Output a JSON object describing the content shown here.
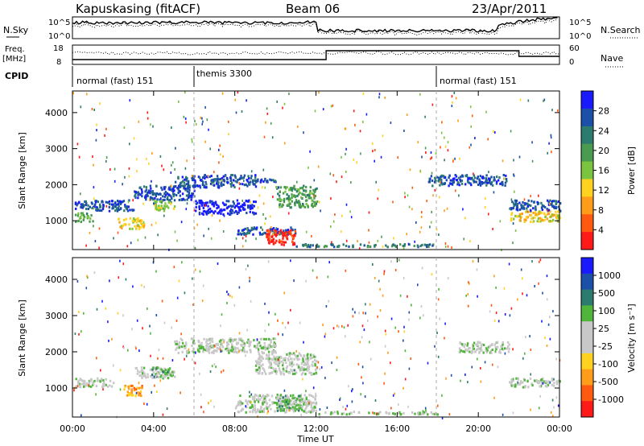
{
  "header": {
    "station": "Kapuskasing (fitACF)",
    "beam": "Beam 06",
    "date": "23/Apr/2011"
  },
  "top_panels": {
    "nsky_label": "N.Sky",
    "nsky_ticks": [
      "10^5",
      "10^0"
    ],
    "nsearch_label": "N.Search",
    "nsearch_ticks": [
      "10^5",
      "10^0"
    ],
    "freq_label_1": "Freq.",
    "freq_label_2": "[MHz]",
    "freq_ticks": [
      "18",
      "8"
    ],
    "nave_label": "Nave",
    "nave_ticks": [
      "60",
      "0"
    ],
    "cpid_label": "CPID",
    "cpid_segments": [
      {
        "label": "normal (fast) 151",
        "start": 0,
        "end": 6
      },
      {
        "label": "themis 3300",
        "start": 6,
        "end": 18
      },
      {
        "label": "normal (fast) 151",
        "start": 18,
        "end": 24
      }
    ]
  },
  "colors": {
    "power": [
      "#1a1aff",
      "#1b4fa8",
      "#2d7a6e",
      "#4a9a50",
      "#7ac440",
      "#ffd21f",
      "#ff9c1a",
      "#ff5a10",
      "#ff1a1a"
    ],
    "velocity": [
      "#1a1aff",
      "#1b4fa8",
      "#2d7a6e",
      "#50b53a",
      "#c8c8c8",
      "#c8c8c8",
      "#ffd21f",
      "#ff9c1a",
      "#ff5a10",
      "#ff1a1a"
    ]
  },
  "chart_data": [
    {
      "type": "heatmap",
      "name": "power",
      "ylabel": "Slant Range [km]",
      "yticks": [
        1000,
        2000,
        3000,
        4000
      ],
      "ylim": [
        200,
        4600
      ],
      "xlim": [
        0,
        24
      ],
      "colorbar_label": "Power [dB]",
      "colorbar_ticks": [
        "28",
        "24",
        "20",
        "16",
        "12",
        "8",
        "4"
      ],
      "patches": [
        {
          "x0": 0.1,
          "x1": 1.0,
          "y0": 1000,
          "y1": 1250,
          "level": 3
        },
        {
          "x0": 0.1,
          "x1": 3.0,
          "y0": 1300,
          "y1": 1600,
          "level": 1
        },
        {
          "x0": 2.2,
          "x1": 3.5,
          "y0": 800,
          "y1": 1100,
          "level": 5
        },
        {
          "x0": 3.0,
          "x1": 6.0,
          "y0": 1600,
          "y1": 2000,
          "level": 1
        },
        {
          "x0": 4.0,
          "x1": 5.0,
          "y0": 1300,
          "y1": 1600,
          "level": 4
        },
        {
          "x0": 5.0,
          "x1": 9.0,
          "y0": 1950,
          "y1": 2300,
          "level": 1
        },
        {
          "x0": 6.0,
          "x1": 9.0,
          "y0": 1200,
          "y1": 1600,
          "level": 0
        },
        {
          "x0": 9.0,
          "x1": 10.0,
          "y0": 2100,
          "y1": 2200,
          "level": 1
        },
        {
          "x0": 10.0,
          "x1": 12.0,
          "y0": 1400,
          "y1": 2000,
          "level": 3
        },
        {
          "x0": 8.0,
          "x1": 11.0,
          "y0": 650,
          "y1": 850,
          "level": 1
        },
        {
          "x0": 9.5,
          "x1": 11.0,
          "y0": 350,
          "y1": 800,
          "level": 8
        },
        {
          "x0": 11.0,
          "x1": 18.0,
          "y0": 300,
          "y1": 380,
          "level": 2
        },
        {
          "x0": 17.5,
          "x1": 21.5,
          "y0": 2000,
          "y1": 2300,
          "level": 1
        },
        {
          "x0": 21.5,
          "x1": 24.0,
          "y0": 1000,
          "y1": 1300,
          "level": 5
        },
        {
          "x0": 21.5,
          "x1": 24.0,
          "y0": 1300,
          "y1": 1600,
          "level": 1
        }
      ]
    },
    {
      "type": "heatmap",
      "name": "velocity",
      "xlabel": "Time UT",
      "ylabel": "Slant Range [km]",
      "yticks": [
        1000,
        2000,
        3000,
        4000
      ],
      "ylim": [
        200,
        4600
      ],
      "xlim": [
        0,
        24
      ],
      "xticks": [
        "00:00",
        "04:00",
        "08:00",
        "12:00",
        "16:00",
        "20:00",
        "00:00"
      ],
      "colorbar_label": "Velocity [m s⁻¹]",
      "colorbar_ticks": [
        "1000",
        "500",
        "100",
        "25",
        "-25",
        "-100",
        "-500",
        "-1000"
      ],
      "patches": [
        {
          "x0": 0.1,
          "x1": 2.0,
          "y0": 1050,
          "y1": 1300,
          "level": 4
        },
        {
          "x0": 2.5,
          "x1": 3.5,
          "y0": 800,
          "y1": 1100,
          "level": 7
        },
        {
          "x0": 3.0,
          "x1": 5.0,
          "y0": 1300,
          "y1": 1600,
          "level": 4
        },
        {
          "x0": 3.8,
          "x1": 4.8,
          "y0": 1300,
          "y1": 1600,
          "level": 3
        },
        {
          "x0": 5.0,
          "x1": 10.0,
          "y0": 2000,
          "y1": 2400,
          "level": 4
        },
        {
          "x0": 9.0,
          "x1": 12.0,
          "y0": 1400,
          "y1": 2000,
          "level": 4
        },
        {
          "x0": 8.0,
          "x1": 12.0,
          "y0": 350,
          "y1": 850,
          "level": 4
        },
        {
          "x0": 10.0,
          "x1": 11.2,
          "y0": 400,
          "y1": 850,
          "level": 3
        },
        {
          "x0": 12.0,
          "x1": 18.0,
          "y0": 300,
          "y1": 380,
          "level": 4
        },
        {
          "x0": 19.0,
          "x1": 21.5,
          "y0": 2000,
          "y1": 2300,
          "level": 4
        },
        {
          "x0": 21.5,
          "x1": 24.0,
          "y0": 1050,
          "y1": 1300,
          "level": 4
        }
      ]
    }
  ]
}
